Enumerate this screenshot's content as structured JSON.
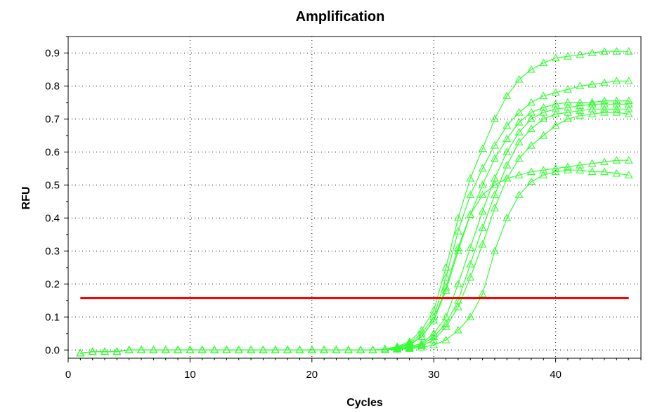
{
  "chart_data": {
    "type": "line",
    "title": "Amplification",
    "xlabel": "Cycles",
    "ylabel": "RFU",
    "xlim": [
      0,
      47
    ],
    "ylim": [
      -0.025,
      0.95
    ],
    "x_ticks": [
      0,
      10,
      20,
      30,
      40
    ],
    "y_ticks": [
      0.0,
      0.1,
      0.2,
      0.3,
      0.4,
      0.5,
      0.6,
      0.7,
      0.8,
      0.9
    ],
    "y_tick_labels": [
      "0.0",
      "0.1",
      "0.2",
      "0.3",
      "0.4",
      "0.5",
      "0.6",
      "0.7",
      "0.8",
      "0.9"
    ],
    "grid": "dotted",
    "marker": "triangle",
    "series_color": "#33ff33",
    "threshold": {
      "value": 0.157,
      "x_range": [
        1,
        46
      ],
      "color": "#ff0000"
    },
    "x": [
      1,
      2,
      3,
      4,
      5,
      6,
      7,
      8,
      9,
      10,
      11,
      12,
      13,
      14,
      15,
      16,
      17,
      18,
      19,
      20,
      21,
      22,
      23,
      24,
      25,
      26,
      27,
      28,
      29,
      30,
      31,
      32,
      33,
      34,
      35,
      36,
      37,
      38,
      39,
      40,
      41,
      42,
      43,
      44,
      45,
      46
    ],
    "series": [
      {
        "values": [
          -0.01,
          -0.005,
          -0.005,
          -0.005,
          0,
          0,
          0,
          0,
          0,
          0,
          0,
          0,
          0,
          0,
          0,
          0,
          0,
          0,
          0,
          0,
          0,
          0,
          0,
          0,
          0,
          0.003,
          0.01,
          0.025,
          0.06,
          0.12,
          0.25,
          0.4,
          0.52,
          0.61,
          0.7,
          0.77,
          0.82,
          0.85,
          0.87,
          0.885,
          0.89,
          0.895,
          0.9,
          0.905,
          0.905,
          0.905
        ]
      },
      {
        "values": [
          -0.01,
          -0.005,
          -0.005,
          -0.005,
          0,
          0,
          0,
          0,
          0,
          0,
          0,
          0,
          0,
          0,
          0,
          0,
          0,
          0,
          0,
          0,
          0,
          0,
          0,
          0,
          0,
          0.002,
          0.008,
          0.02,
          0.05,
          0.1,
          0.22,
          0.36,
          0.47,
          0.55,
          0.62,
          0.68,
          0.72,
          0.75,
          0.77,
          0.78,
          0.79,
          0.8,
          0.805,
          0.81,
          0.815,
          0.815
        ]
      },
      {
        "values": [
          -0.01,
          -0.005,
          -0.005,
          -0.005,
          0,
          0,
          0,
          0,
          0,
          0,
          0,
          0,
          0,
          0,
          0,
          0,
          0,
          0,
          0,
          0,
          0,
          0,
          0,
          0,
          0,
          0.002,
          0.006,
          0.015,
          0.04,
          0.09,
          0.18,
          0.3,
          0.41,
          0.5,
          0.58,
          0.64,
          0.69,
          0.72,
          0.735,
          0.745,
          0.75,
          0.75,
          0.75,
          0.755,
          0.755,
          0.755
        ]
      },
      {
        "values": [
          -0.01,
          -0.005,
          -0.005,
          -0.005,
          0,
          0,
          0,
          0,
          0,
          0,
          0,
          0,
          0,
          0,
          0,
          0,
          0,
          0,
          0,
          0,
          0,
          0,
          0,
          0,
          0,
          0.001,
          0.004,
          0.01,
          0.02,
          0.05,
          0.1,
          0.2,
          0.31,
          0.42,
          0.52,
          0.6,
          0.66,
          0.7,
          0.72,
          0.73,
          0.735,
          0.74,
          0.745,
          0.745,
          0.745,
          0.745
        ]
      },
      {
        "values": [
          -0.01,
          -0.005,
          -0.005,
          -0.005,
          0,
          0,
          0,
          0,
          0,
          0,
          0,
          0,
          0,
          0,
          0,
          0,
          0,
          0,
          0,
          0,
          0,
          0,
          0,
          0,
          0,
          0.001,
          0.004,
          0.008,
          0.015,
          0.04,
          0.08,
          0.15,
          0.26,
          0.37,
          0.47,
          0.56,
          0.63,
          0.67,
          0.7,
          0.715,
          0.72,
          0.725,
          0.73,
          0.73,
          0.73,
          0.73
        ]
      },
      {
        "values": [
          -0.01,
          -0.005,
          -0.005,
          -0.005,
          0,
          0,
          0,
          0,
          0,
          0,
          0,
          0,
          0,
          0,
          0,
          0,
          0,
          0,
          0,
          0,
          0,
          0,
          0,
          0,
          0,
          0.001,
          0.003,
          0.006,
          0.012,
          0.03,
          0.07,
          0.13,
          0.22,
          0.32,
          0.43,
          0.52,
          0.58,
          0.62,
          0.65,
          0.68,
          0.7,
          0.71,
          0.715,
          0.72,
          0.72,
          0.715
        ]
      },
      {
        "values": [
          -0.01,
          -0.005,
          -0.005,
          -0.005,
          0,
          0,
          0,
          0,
          0,
          0,
          0,
          0,
          0,
          0,
          0,
          0,
          0,
          0,
          0,
          0,
          0,
          0,
          0,
          0,
          0,
          0.002,
          0.008,
          0.018,
          0.04,
          0.09,
          0.19,
          0.31,
          0.41,
          0.47,
          0.5,
          0.52,
          0.53,
          0.54,
          0.545,
          0.55,
          0.555,
          0.56,
          0.565,
          0.57,
          0.575,
          0.575
        ]
      },
      {
        "values": [
          -0.01,
          -0.005,
          -0.005,
          -0.005,
          0,
          0,
          0,
          0,
          0,
          0,
          0,
          0,
          0,
          0,
          0,
          0,
          0,
          0,
          0,
          0,
          0,
          0,
          0,
          0,
          0,
          0.001,
          0.002,
          0.004,
          0.008,
          0.015,
          0.03,
          0.06,
          0.1,
          0.17,
          0.3,
          0.4,
          0.47,
          0.51,
          0.53,
          0.54,
          0.545,
          0.545,
          0.54,
          0.54,
          0.535,
          0.53
        ]
      }
    ]
  }
}
